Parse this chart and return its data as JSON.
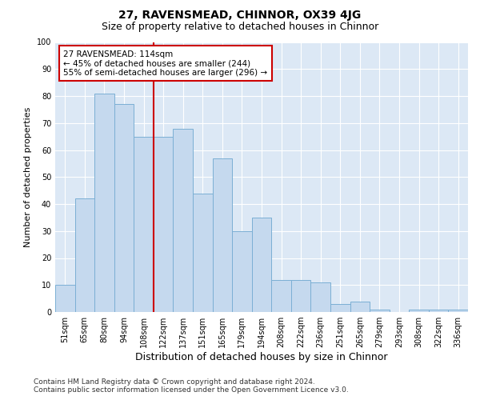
{
  "title": "27, RAVENSMEAD, CHINNOR, OX39 4JG",
  "subtitle": "Size of property relative to detached houses in Chinnor",
  "xlabel": "Distribution of detached houses by size in Chinnor",
  "ylabel": "Number of detached properties",
  "categories": [
    "51sqm",
    "65sqm",
    "80sqm",
    "94sqm",
    "108sqm",
    "122sqm",
    "137sqm",
    "151sqm",
    "165sqm",
    "179sqm",
    "194sqm",
    "208sqm",
    "222sqm",
    "236sqm",
    "251sqm",
    "265sqm",
    "279sqm",
    "293sqm",
    "308sqm",
    "322sqm",
    "336sqm"
  ],
  "values": [
    10,
    42,
    81,
    77,
    65,
    65,
    68,
    44,
    57,
    30,
    35,
    12,
    12,
    11,
    3,
    4,
    1,
    0,
    1,
    1,
    1
  ],
  "bar_color": "#c5d9ee",
  "bar_edge_color": "#7bafd4",
  "vline_index": 4,
  "vline_color": "#cc0000",
  "annotation_text": "27 RAVENSMEAD: 114sqm\n← 45% of detached houses are smaller (244)\n55% of semi-detached houses are larger (296) →",
  "annotation_box_color": "#ffffff",
  "annotation_box_edge": "#cc0000",
  "ylim": [
    0,
    100
  ],
  "yticks": [
    0,
    10,
    20,
    30,
    40,
    50,
    60,
    70,
    80,
    90,
    100
  ],
  "background_color": "#dce8f5",
  "footer_line1": "Contains HM Land Registry data © Crown copyright and database right 2024.",
  "footer_line2": "Contains public sector information licensed under the Open Government Licence v3.0.",
  "title_fontsize": 10,
  "subtitle_fontsize": 9,
  "xlabel_fontsize": 9,
  "ylabel_fontsize": 8,
  "tick_fontsize": 7,
  "annotation_fontsize": 7.5,
  "footer_fontsize": 6.5
}
